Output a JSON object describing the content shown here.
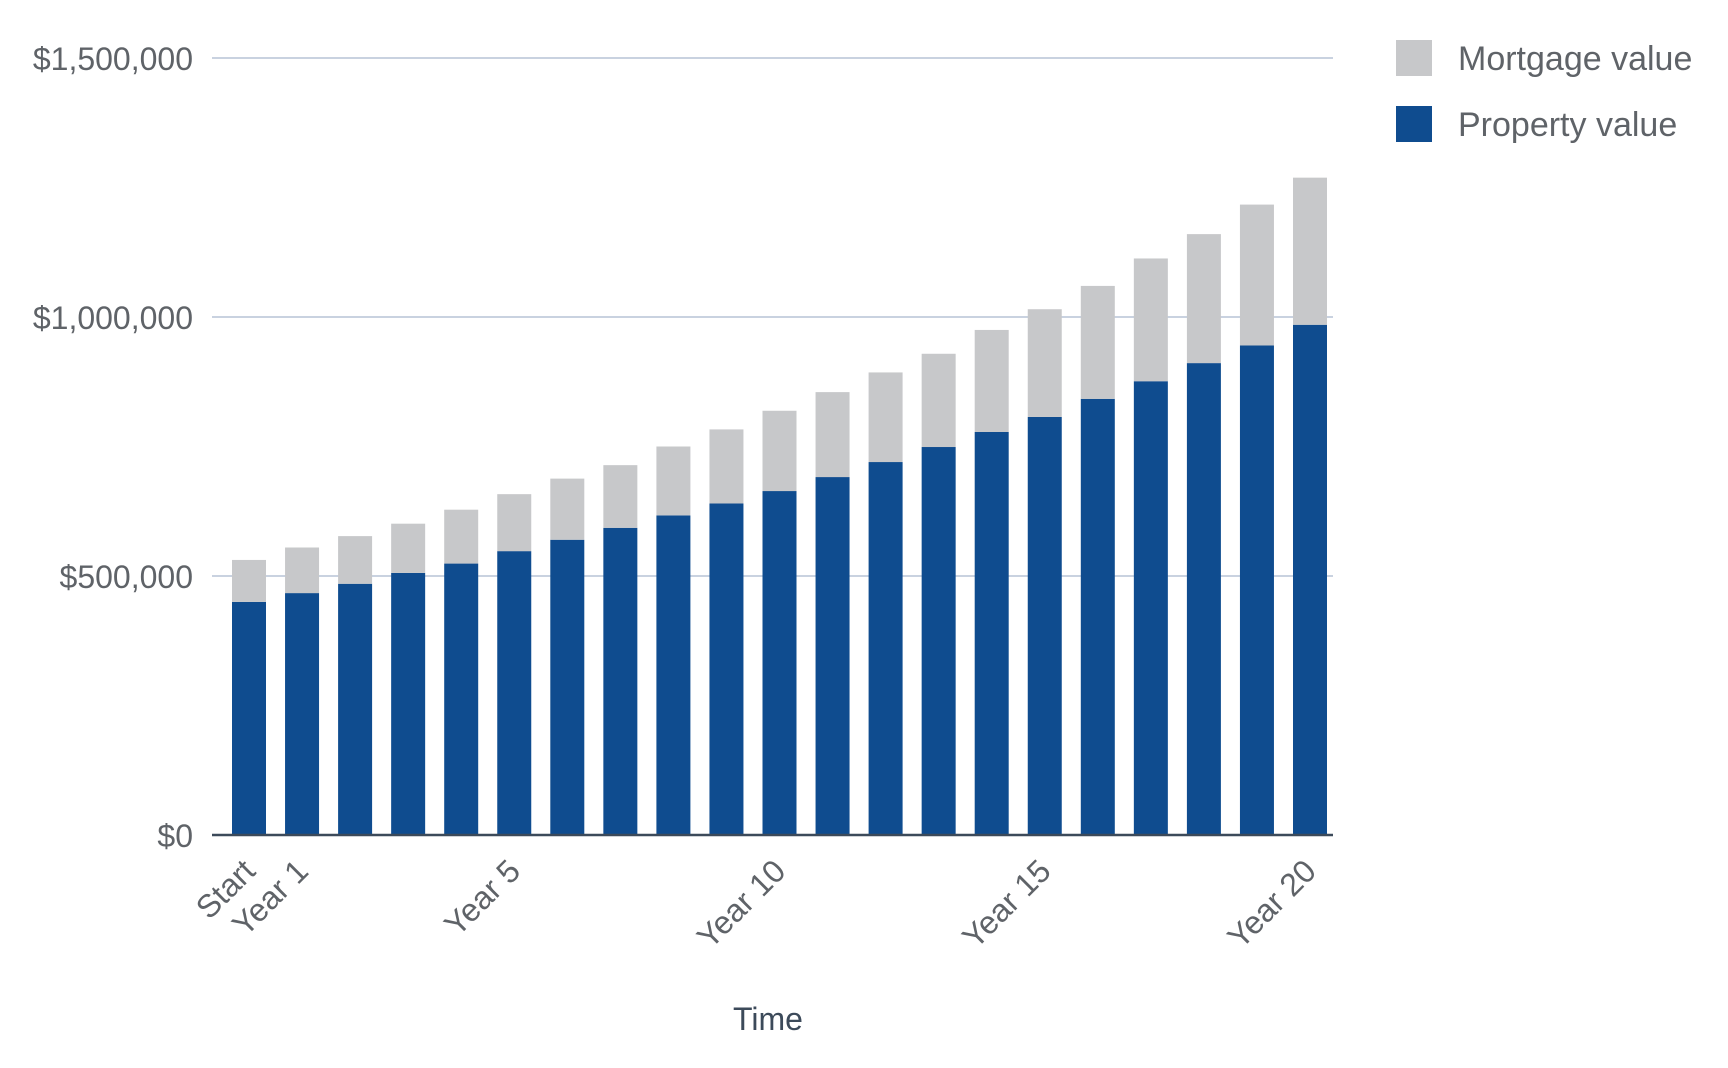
{
  "chart_data": {
    "type": "bar",
    "stacked": true,
    "title": "",
    "xlabel": "Time",
    "ylabel": "",
    "ylim": [
      0,
      1500000
    ],
    "y_ticks": [
      0,
      500000,
      1000000,
      1500000
    ],
    "y_tick_labels": [
      "$0",
      "$500,000",
      "$1,000,000",
      "$1,500,000"
    ],
    "x_tick_labels": [
      "Start",
      "Year 1",
      "Year 5",
      "Year 10",
      "Year 15",
      "Year 20"
    ],
    "x_tick_categories": [
      0,
      1,
      5,
      10,
      15,
      20
    ],
    "categories": [
      "Start",
      "Year 1",
      "Year 2",
      "Year 3",
      "Year 4",
      "Year 5",
      "Year 6",
      "Year 7",
      "Year 8",
      "Year 9",
      "Year 10",
      "Year 11",
      "Year 12",
      "Year 13",
      "Year 14",
      "Year 15",
      "Year 16",
      "Year 17",
      "Year 18",
      "Year 19",
      "Year 20"
    ],
    "grid": true,
    "legend_position": "top-right",
    "series": [
      {
        "name": "Property value",
        "color": "#0f4c8f",
        "values": [
          450000,
          467000,
          485000,
          506000,
          524000,
          548000,
          570000,
          593000,
          617000,
          640000,
          664000,
          691000,
          720000,
          749000,
          778000,
          807000,
          842000,
          876000,
          911000,
          945000,
          985000
        ]
      },
      {
        "name": "Mortgage value",
        "color": "#c7c8ca",
        "values": [
          81000,
          88000,
          92000,
          95000,
          104000,
          110000,
          118000,
          121000,
          133000,
          143000,
          155000,
          164000,
          173000,
          180000,
          197000,
          208000,
          218000,
          237000,
          249000,
          272000,
          284000
        ]
      }
    ],
    "legend": [
      {
        "name": "Mortgage value",
        "color": "#c7c8ca"
      },
      {
        "name": "Property value",
        "color": "#0f4c8f"
      }
    ]
  }
}
